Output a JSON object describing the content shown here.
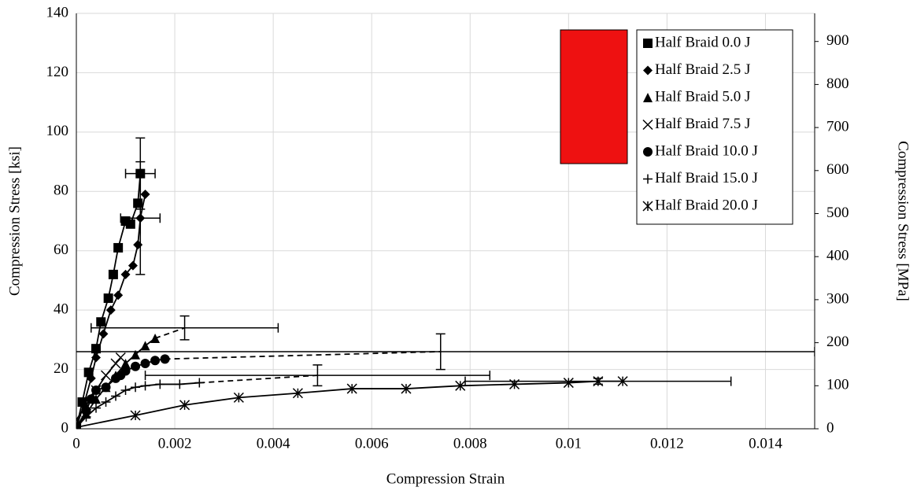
{
  "chart_data": {
    "type": "scatter",
    "x_label": "Compression Strain",
    "y_label": "Compression Stress [ksi]",
    "y2_label": "Compression Stress [MPa]",
    "xlim": [
      0,
      0.015
    ],
    "xticks": [
      0,
      0.002,
      0.004,
      0.006,
      0.008,
      0.01,
      0.012,
      0.014
    ],
    "ylim": [
      0,
      140
    ],
    "yticks": [
      0,
      20,
      40,
      60,
      80,
      100,
      120,
      140
    ],
    "y2lim": [
      0,
      965.27
    ],
    "y2ticks": [
      0,
      100,
      200,
      300,
      400,
      500,
      600,
      700,
      800,
      900
    ],
    "grid": true,
    "legend": "top-right",
    "series": [
      {
        "name": "Half Braid 0.0 J",
        "marker": "square",
        "color": "#000000",
        "dash_last": false,
        "x": [
          0,
          0.00012,
          0.00025,
          0.0004,
          0.0005,
          0.00065,
          0.00075,
          0.00085,
          0.001,
          0.0011,
          0.00125,
          0.0013
        ],
        "y": [
          0.5,
          9,
          19,
          27,
          36,
          44,
          52,
          61,
          70,
          69,
          76,
          86
        ],
        "x_err": [
          null,
          null,
          null,
          null,
          null,
          null,
          null,
          null,
          null,
          null,
          null,
          0.0003
        ],
        "y_err": [
          null,
          null,
          null,
          null,
          null,
          null,
          null,
          null,
          null,
          null,
          null,
          12
        ]
      },
      {
        "name": "Half Braid 2.5 J",
        "marker": "diamond",
        "color": "#000000",
        "dash_last": false,
        "x": [
          0,
          0.00015,
          0.0003,
          0.0004,
          0.00055,
          0.0007,
          0.00085,
          0.001,
          0.00115,
          0.00125,
          0.0013,
          0.0014
        ],
        "y": [
          0.5,
          8,
          17,
          24,
          32,
          40,
          45,
          52,
          55,
          62,
          71,
          79
        ],
        "x_err": [
          null,
          null,
          null,
          null,
          null,
          null,
          null,
          null,
          null,
          null,
          0.0004,
          null
        ],
        "y_err": [
          null,
          null,
          null,
          null,
          null,
          null,
          null,
          null,
          null,
          null,
          19,
          null
        ]
      },
      {
        "name": "Half Braid 5.0 J",
        "marker": "triangle",
        "color": "#000000",
        "dash_last": true,
        "x": [
          0,
          0.0002,
          0.0004,
          0.0006,
          0.0008,
          0.001,
          0.0012,
          0.0014,
          0.0016,
          0.0022
        ],
        "y": [
          0.5,
          5,
          10,
          14,
          18,
          22,
          25,
          28,
          30.5,
          34
        ],
        "x_err": [
          null,
          null,
          null,
          null,
          null,
          null,
          null,
          null,
          null,
          0.0019
        ],
        "y_err": [
          null,
          null,
          null,
          null,
          null,
          null,
          null,
          null,
          null,
          4
        ]
      },
      {
        "name": "Half Braid 7.5 J",
        "marker": "x",
        "color": "#000000",
        "dash_last": false,
        "x": [
          0,
          0.0002,
          0.0004,
          0.0006,
          0.0008,
          0.0009
        ],
        "y": [
          3,
          8,
          13,
          18,
          22,
          24
        ],
        "x_err": [
          null,
          null,
          null,
          null,
          null,
          null
        ],
        "y_err": [
          null,
          null,
          null,
          null,
          null,
          null
        ]
      },
      {
        "name": "Half Braid 10.0 J",
        "marker": "circle",
        "color": "#000000",
        "dash_last": true,
        "x": [
          0,
          0.0002,
          0.0003,
          0.0004,
          0.0006,
          0.0008,
          0.0009,
          0.001,
          0.0012,
          0.0014,
          0.0016,
          0.0018,
          0.0074
        ],
        "y": [
          0.5,
          6,
          10,
          13,
          14,
          17,
          18,
          19.5,
          21,
          22,
          23,
          23.5,
          26
        ],
        "x_err": [
          null,
          null,
          null,
          null,
          null,
          null,
          null,
          null,
          null,
          null,
          null,
          null,
          0.0076
        ],
        "y_err": [
          null,
          null,
          null,
          null,
          null,
          null,
          null,
          null,
          null,
          null,
          null,
          null,
          6
        ]
      },
      {
        "name": "Half Braid 15.0 J",
        "marker": "plus",
        "color": "#000000",
        "dash_last": true,
        "x": [
          0,
          0.0002,
          0.0004,
          0.0006,
          0.0008,
          0.001,
          0.0012,
          0.0014,
          0.0017,
          0.0021,
          0.0025,
          0.0049
        ],
        "y": [
          0.5,
          4,
          7,
          9,
          11,
          13,
          14,
          14.5,
          15,
          15,
          15.5,
          18
        ],
        "x_err": [
          null,
          null,
          null,
          null,
          null,
          null,
          null,
          null,
          null,
          null,
          null,
          0.0035
        ],
        "y_err": [
          null,
          null,
          null,
          null,
          null,
          null,
          null,
          null,
          null,
          null,
          null,
          3.5
        ]
      },
      {
        "name": "Half Braid 20.0 J",
        "marker": "asterisk",
        "color": "#000000",
        "dash_last": false,
        "x": [
          0,
          0.0012,
          0.0022,
          0.0033,
          0.0045,
          0.0056,
          0.0067,
          0.0078,
          0.0089,
          0.01,
          0.0106,
          0.0111
        ],
        "y": [
          0.5,
          4.5,
          8,
          10.5,
          12,
          13.5,
          13.5,
          14.5,
          15,
          15.5,
          16,
          16
        ],
        "x_err": [
          null,
          null,
          null,
          null,
          null,
          null,
          null,
          null,
          null,
          null,
          0.0027,
          null
        ],
        "y_err": [
          null,
          null,
          null,
          null,
          null,
          null,
          null,
          null,
          null,
          null,
          1,
          null
        ]
      }
    ]
  }
}
